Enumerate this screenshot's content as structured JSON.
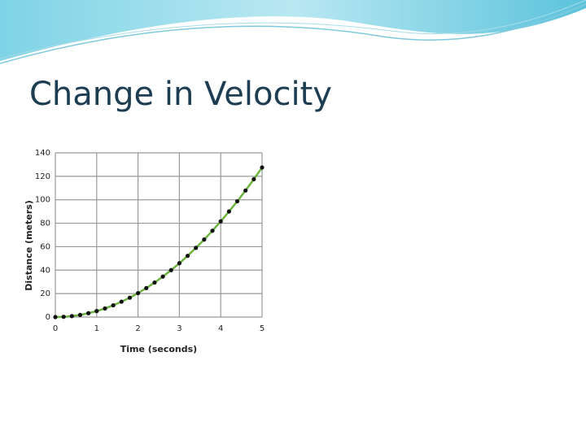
{
  "slide": {
    "title": "Change in Velocity"
  },
  "chart_data": {
    "type": "line",
    "x_label": "Time (seconds)",
    "y_label": "Distance (meters)",
    "x": [
      0,
      0.2,
      0.4,
      0.6,
      0.8,
      1,
      1.2,
      1.4,
      1.6,
      1.8,
      2,
      2.2,
      2.4,
      2.6,
      2.8,
      3,
      3.2,
      3.4,
      3.6,
      3.8,
      4,
      4.2,
      4.4,
      4.6,
      4.8,
      5
    ],
    "series": [
      {
        "color": "#6db33f",
        "marker_color": "#111111",
        "values": [
          0,
          0.2,
          0.8,
          1.8,
          3.3,
          5.1,
          7.3,
          10.0,
          13.1,
          16.5,
          20.4,
          24.7,
          29.4,
          34.5,
          40.0,
          45.9,
          52.2,
          59.0,
          66.1,
          73.6,
          81.6,
          90.0,
          98.7,
          107.9,
          117.5,
          127.5
        ]
      }
    ],
    "xlim": [
      0,
      5
    ],
    "xticks": [
      0,
      1,
      2,
      3,
      4,
      5
    ],
    "ylim": [
      0,
      140
    ],
    "yticks": [
      0,
      20,
      40,
      60,
      80,
      100,
      120,
      140
    ],
    "grid": true
  }
}
